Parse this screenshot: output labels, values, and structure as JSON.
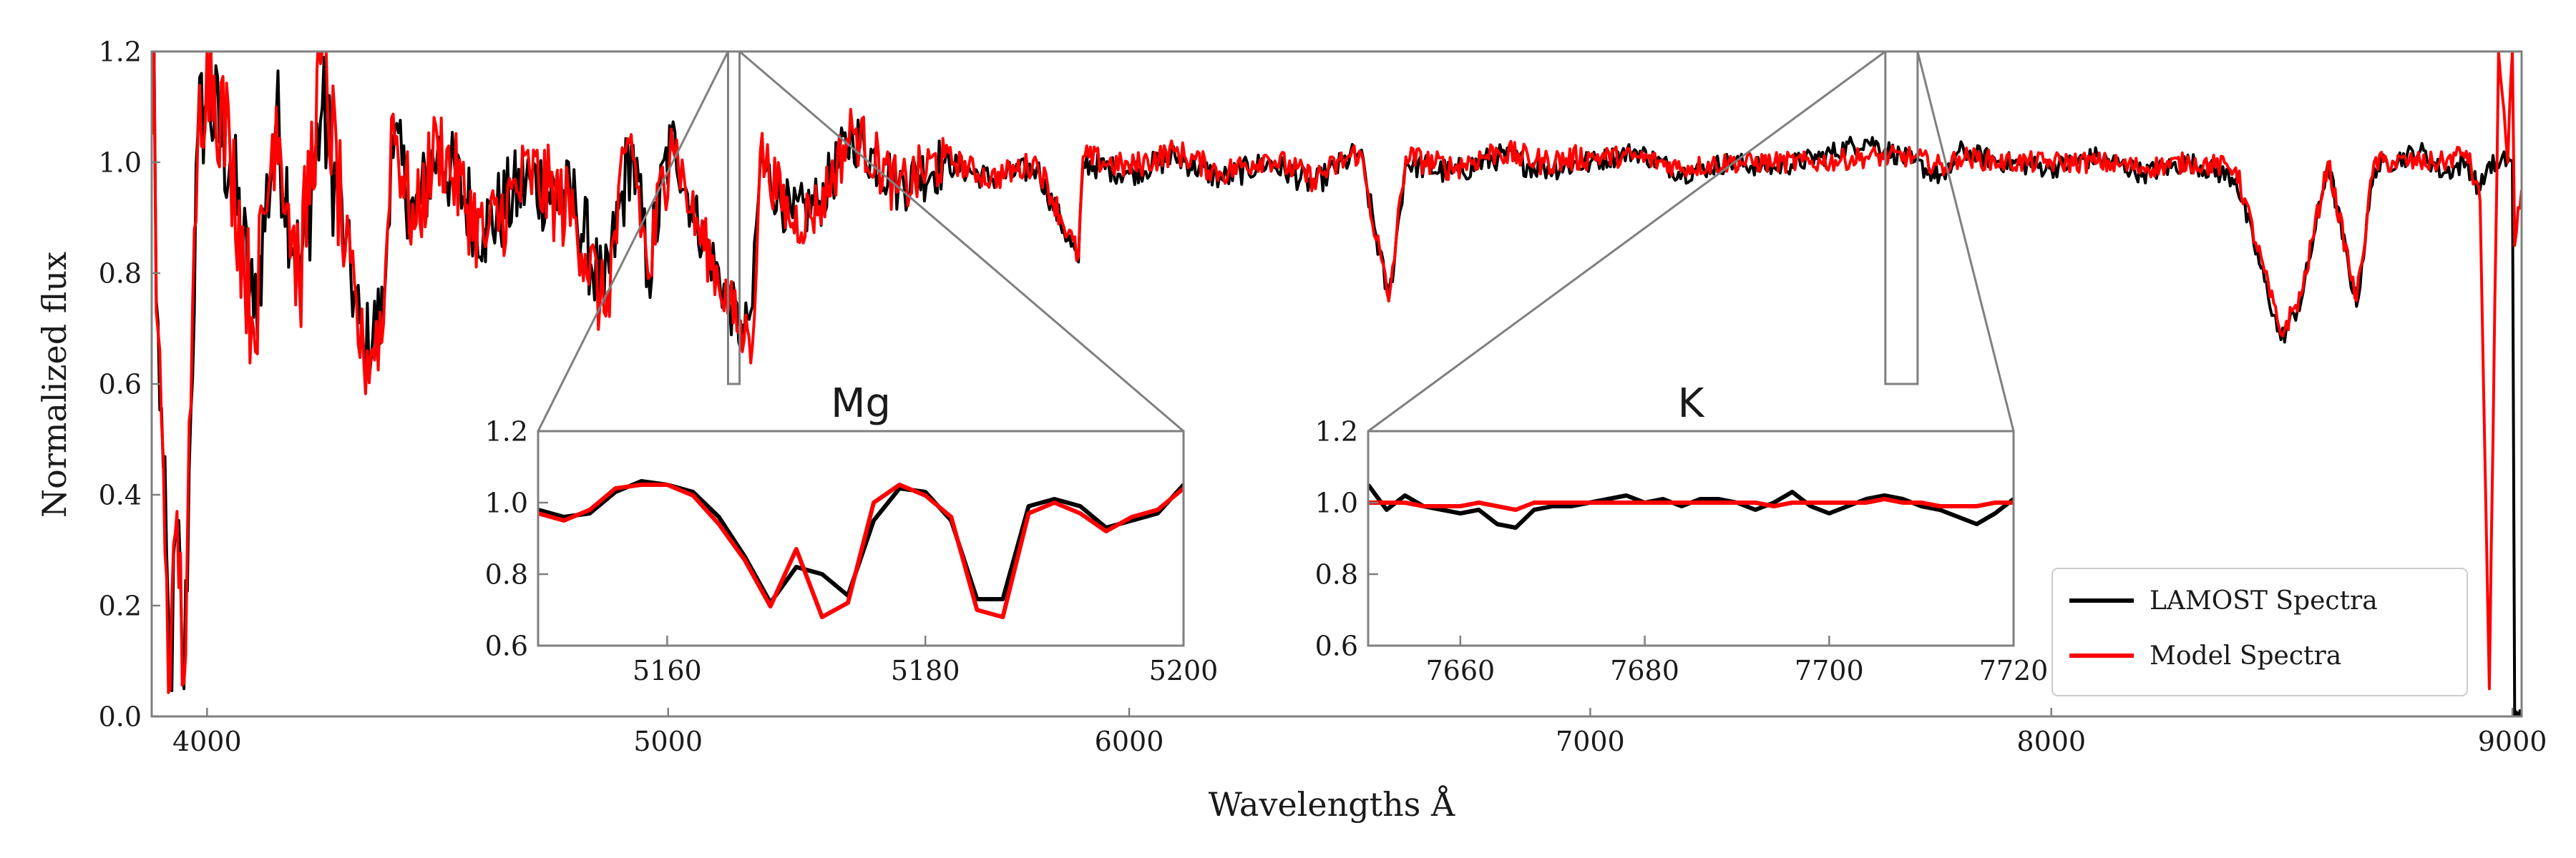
{
  "colors": {
    "lamost": "#000000",
    "model": "#ff0000",
    "frame": "#7f7f7f",
    "text": "#1a1a1a"
  },
  "chart_data": [
    {
      "type": "line",
      "title": "",
      "xlabel": "Wavelengths Å",
      "ylabel": "Normalized flux",
      "xlim": [
        3880,
        9020
      ],
      "ylim": [
        0.0,
        1.2
      ],
      "x_ticks": [
        "4000",
        "5000",
        "6000",
        "7000",
        "8000",
        "9000"
      ],
      "y_ticks": [
        "0.0",
        "0.2",
        "0.4",
        "0.6",
        "0.8",
        "1.0",
        "1.2"
      ],
      "grid": false,
      "legend_position": "lower-right",
      "legend": [
        "LAMOST Spectra",
        "Model Spectra"
      ],
      "series": [
        {
          "name": "LAMOST Spectra",
          "color": "#000000",
          "x": [
            3880,
            3885,
            3890,
            3905,
            3920,
            3935,
            3950,
            3965,
            3980,
            4000,
            4050,
            4101,
            4150,
            4200,
            4250,
            4300,
            4340,
            4383,
            4400,
            4450,
            4500,
            4600,
            4700,
            4800,
            4861,
            4920,
            4957,
            5007,
            5050,
            5165,
            5172,
            5183,
            5200,
            5270,
            5328,
            5400,
            5500,
            5600,
            5700,
            5800,
            5890,
            5900,
            6000,
            6100,
            6200,
            6300,
            6400,
            6500,
            6563,
            6600,
            6700,
            6800,
            6900,
            7000,
            7100,
            7200,
            7300,
            7400,
            7500,
            7600,
            7700,
            7770,
            7800,
            7900,
            8000,
            8100,
            8200,
            8300,
            8400,
            8498,
            8542,
            8600,
            8662,
            8700,
            8800,
            8850,
            8900,
            8930,
            8950,
            8970,
            8990,
            9000,
            9005,
            9020
          ],
          "y": [
            1.05,
            1.22,
            0.75,
            0.45,
            0.05,
            0.35,
            0.05,
            0.55,
            1.05,
            1.12,
            1.0,
            0.72,
            1.08,
            0.8,
            1.1,
            0.85,
            0.66,
            0.73,
            1.05,
            0.9,
            1.02,
            0.88,
            0.97,
            0.92,
            0.75,
            1.03,
            0.8,
            1.05,
            0.92,
            0.68,
            0.72,
            0.74,
            1.0,
            0.9,
            0.93,
            1.05,
            0.96,
            1.0,
            0.97,
            0.99,
            0.82,
            1.0,
            0.98,
            1.01,
            0.97,
            1.0,
            0.96,
            1.02,
            0.75,
            1.0,
            0.98,
            1.01,
            0.99,
            1.0,
            1.02,
            0.98,
            1.0,
            0.99,
            1.01,
            1.04,
            1.0,
            0.97,
            1.02,
            1.0,
            0.99,
            1.01,
            0.98,
            1.0,
            0.97,
            0.68,
            0.75,
            1.0,
            0.74,
            0.99,
            1.02,
            0.98,
            1.0,
            0.95,
            1.0,
            0.99,
            1.01,
            1.0,
            0.0,
            0.0
          ]
        },
        {
          "name": "Model Spectra",
          "color": "#ff0000",
          "x": [
            3880,
            3885,
            3890,
            3905,
            3920,
            3935,
            3950,
            3965,
            3980,
            4000,
            4050,
            4101,
            4150,
            4200,
            4250,
            4300,
            4340,
            4383,
            4400,
            4450,
            4500,
            4600,
            4700,
            4800,
            4861,
            4920,
            4957,
            5007,
            5050,
            5165,
            5172,
            5183,
            5200,
            5270,
            5328,
            5400,
            5500,
            5600,
            5700,
            5800,
            5890,
            5900,
            6000,
            6100,
            6200,
            6300,
            6400,
            6500,
            6563,
            6600,
            6700,
            6800,
            6900,
            7000,
            7100,
            7200,
            7300,
            7400,
            7500,
            7600,
            7700,
            7770,
            7800,
            7900,
            8000,
            8100,
            8200,
            8300,
            8400,
            8498,
            8542,
            8600,
            8662,
            8700,
            8800,
            8850,
            8900,
            8930,
            8950,
            8970,
            8990,
            9000,
            9005,
            9020
          ],
          "y": [
            1.05,
            1.2,
            0.73,
            0.47,
            0.05,
            0.37,
            0.06,
            0.56,
            1.04,
            1.2,
            1.02,
            0.7,
            1.1,
            0.78,
            1.2,
            0.84,
            0.64,
            0.71,
            1.08,
            0.88,
            1.04,
            0.86,
            0.98,
            0.9,
            0.73,
            1.05,
            0.79,
            1.06,
            0.91,
            0.68,
            0.7,
            0.67,
            1.02,
            0.89,
            0.92,
            1.06,
            0.95,
            1.01,
            0.97,
            1.0,
            0.83,
            1.01,
            0.99,
            1.02,
            0.98,
            1.01,
            0.97,
            1.02,
            0.75,
            1.01,
            0.99,
            1.02,
            1.0,
            1.01,
            1.01,
            0.99,
            1.0,
            1.0,
            1.0,
            1.01,
            1.01,
            0.99,
            1.01,
            1.0,
            1.0,
            1.0,
            0.99,
            1.0,
            0.99,
            0.69,
            0.76,
            1.0,
            0.75,
            1.0,
            1.0,
            1.0,
            1.02,
            0.93,
            0.05,
            1.2,
            1.0,
            1.2,
            0.85,
            0.95
          ]
        }
      ]
    },
    {
      "type": "line",
      "title": "Mg",
      "xlim": [
        5150,
        5200
      ],
      "ylim": [
        0.6,
        1.2
      ],
      "x_ticks": [
        "5160",
        "5180",
        "5200"
      ],
      "y_ticks": [
        "0.6",
        "0.8",
        "1.0",
        "1.2"
      ],
      "source_region": {
        "x": [
          5130,
          5155
        ],
        "y": [
          0.6,
          1.2
        ]
      },
      "series": [
        {
          "name": "LAMOST Spectra",
          "x": [
            5150,
            5152,
            5154,
            5156,
            5158,
            5160,
            5162,
            5164,
            5166,
            5168,
            5170,
            5172,
            5174,
            5176,
            5178,
            5180,
            5182,
            5184,
            5186,
            5188,
            5190,
            5192,
            5194,
            5196,
            5198,
            5200
          ],
          "y": [
            0.98,
            0.96,
            0.97,
            1.03,
            1.06,
            1.05,
            1.03,
            0.96,
            0.85,
            0.72,
            0.82,
            0.8,
            0.74,
            0.95,
            1.04,
            1.03,
            0.95,
            0.73,
            0.73,
            0.99,
            1.01,
            0.99,
            0.93,
            0.95,
            0.97,
            1.05
          ]
        },
        {
          "name": "Model Spectra",
          "x": [
            5150,
            5152,
            5154,
            5156,
            5158,
            5160,
            5162,
            5164,
            5166,
            5168,
            5170,
            5172,
            5174,
            5176,
            5178,
            5180,
            5182,
            5184,
            5186,
            5188,
            5190,
            5192,
            5194,
            5196,
            5198,
            5200
          ],
          "y": [
            0.97,
            0.95,
            0.98,
            1.04,
            1.05,
            1.05,
            1.02,
            0.94,
            0.84,
            0.71,
            0.87,
            0.68,
            0.72,
            1.0,
            1.05,
            1.02,
            0.96,
            0.7,
            0.68,
            0.97,
            1.0,
            0.97,
            0.92,
            0.96,
            0.98,
            1.04
          ]
        }
      ]
    },
    {
      "type": "line",
      "title": "K",
      "xlim": [
        7650,
        7720
      ],
      "ylim": [
        0.6,
        1.2
      ],
      "x_ticks": [
        "7660",
        "7680",
        "7700",
        "7720"
      ],
      "y_ticks": [
        "0.6",
        "0.8",
        "1.0",
        "1.2"
      ],
      "source_region": {
        "x": [
          7640,
          7710
        ],
        "y": [
          0.6,
          1.2
        ]
      },
      "series": [
        {
          "name": "LAMOST Spectra",
          "x": [
            7650,
            7652,
            7654,
            7656,
            7658,
            7660,
            7662,
            7664,
            7666,
            7668,
            7670,
            7672,
            7674,
            7676,
            7678,
            7680,
            7682,
            7684,
            7686,
            7688,
            7690,
            7692,
            7694,
            7696,
            7698,
            7700,
            7702,
            7704,
            7706,
            7708,
            7710,
            7712,
            7714,
            7716,
            7718,
            7720
          ],
          "y": [
            1.05,
            0.98,
            1.02,
            0.99,
            0.98,
            0.97,
            0.98,
            0.94,
            0.93,
            0.98,
            0.99,
            0.99,
            1.0,
            1.01,
            1.02,
            1.0,
            1.01,
            0.99,
            1.01,
            1.01,
            1.0,
            0.98,
            1.0,
            1.03,
            0.99,
            0.97,
            0.99,
            1.01,
            1.02,
            1.01,
            0.99,
            0.98,
            0.96,
            0.94,
            0.97,
            1.01
          ]
        },
        {
          "name": "Model Spectra",
          "x": [
            7650,
            7652,
            7654,
            7656,
            7658,
            7660,
            7662,
            7664,
            7666,
            7668,
            7670,
            7672,
            7674,
            7676,
            7678,
            7680,
            7682,
            7684,
            7686,
            7688,
            7690,
            7692,
            7694,
            7696,
            7698,
            7700,
            7702,
            7704,
            7706,
            7708,
            7710,
            7712,
            7714,
            7716,
            7718,
            7720
          ],
          "y": [
            1.0,
            1.0,
            1.0,
            0.99,
            0.99,
            0.99,
            1.0,
            0.99,
            0.98,
            1.0,
            1.0,
            1.0,
            1.0,
            1.0,
            1.0,
            1.0,
            1.0,
            1.0,
            1.0,
            1.0,
            1.0,
            1.0,
            0.99,
            1.0,
            1.0,
            1.0,
            1.0,
            1.0,
            1.01,
            1.0,
            1.0,
            0.99,
            0.99,
            0.99,
            1.0,
            1.0
          ]
        }
      ]
    }
  ]
}
